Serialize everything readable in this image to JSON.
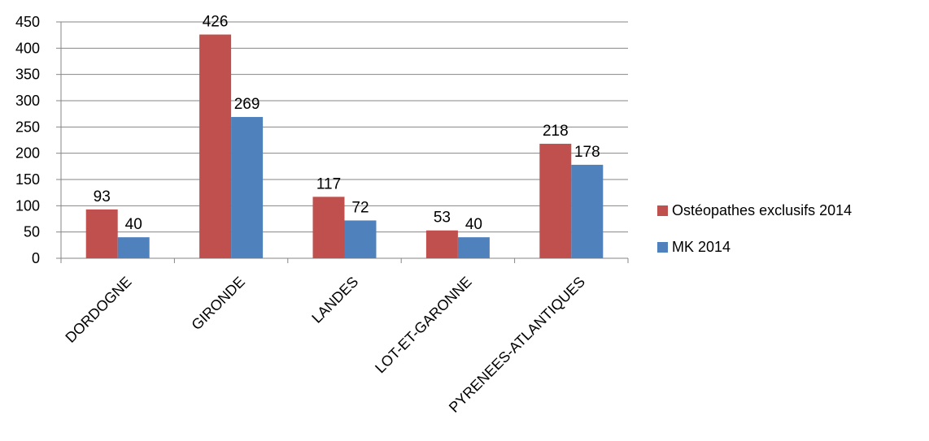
{
  "chart_data": {
    "type": "bar",
    "title": "",
    "xlabel": "",
    "ylabel": "",
    "categories": [
      "DORDOGNE",
      "GIRONDE",
      "LANDES",
      "LOT-ET-GARONNE",
      "PYRENEES-ATLANTIQUES"
    ],
    "series": [
      {
        "name": "Ostéopathes exclusifs 2014",
        "color": "#C0504D",
        "values": [
          93,
          426,
          117,
          53,
          218
        ]
      },
      {
        "name": "MK 2014",
        "color": "#4F81BD",
        "values": [
          40,
          269,
          72,
          40,
          178
        ]
      }
    ],
    "ylim": [
      0,
      450
    ],
    "yticks": [
      0,
      50,
      100,
      150,
      200,
      250,
      300,
      350,
      400,
      450
    ],
    "grid": true,
    "legend_position": "right",
    "data_labels": true
  }
}
